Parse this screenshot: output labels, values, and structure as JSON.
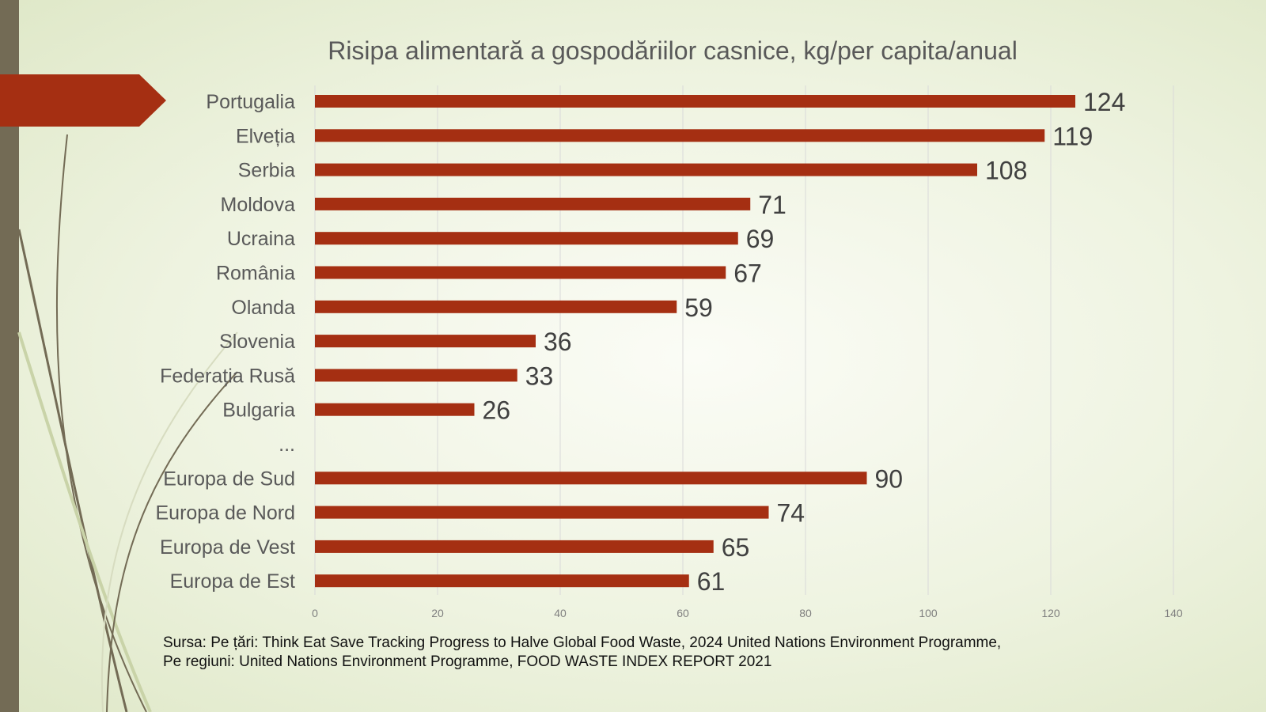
{
  "chart_data": {
    "type": "bar",
    "orientation": "horizontal",
    "title": "Risipa alimentară a gospodăriilor casnice, kg/per capita/anual",
    "categories": [
      "Portugalia",
      "Elveția",
      "Serbia",
      "Moldova",
      "Ucraina",
      "România",
      "Olanda",
      "Slovenia",
      "Federația Rusă",
      "Bulgaria",
      "...",
      "Europa de Sud",
      "Europa de Nord",
      "Europa de Vest",
      "Europa de Est"
    ],
    "values": [
      124,
      119,
      108,
      71,
      69,
      67,
      59,
      36,
      33,
      26,
      null,
      90,
      74,
      65,
      61
    ],
    "xlim": [
      0,
      140
    ],
    "xticks": [
      0,
      20,
      40,
      60,
      80,
      100,
      120,
      140
    ],
    "grid": true,
    "xlabel": "",
    "ylabel": "",
    "bar_color": "#a52f12"
  },
  "source": {
    "line1": "Sursa: Pe țări: Think Eat Save Tracking Progress to Halve Global Food Waste, 2024 United Nations Environment Programme,",
    "line2": "Pe regiuni: United Nations Environment Programme, FOOD WASTE INDEX REPORT 2021"
  }
}
